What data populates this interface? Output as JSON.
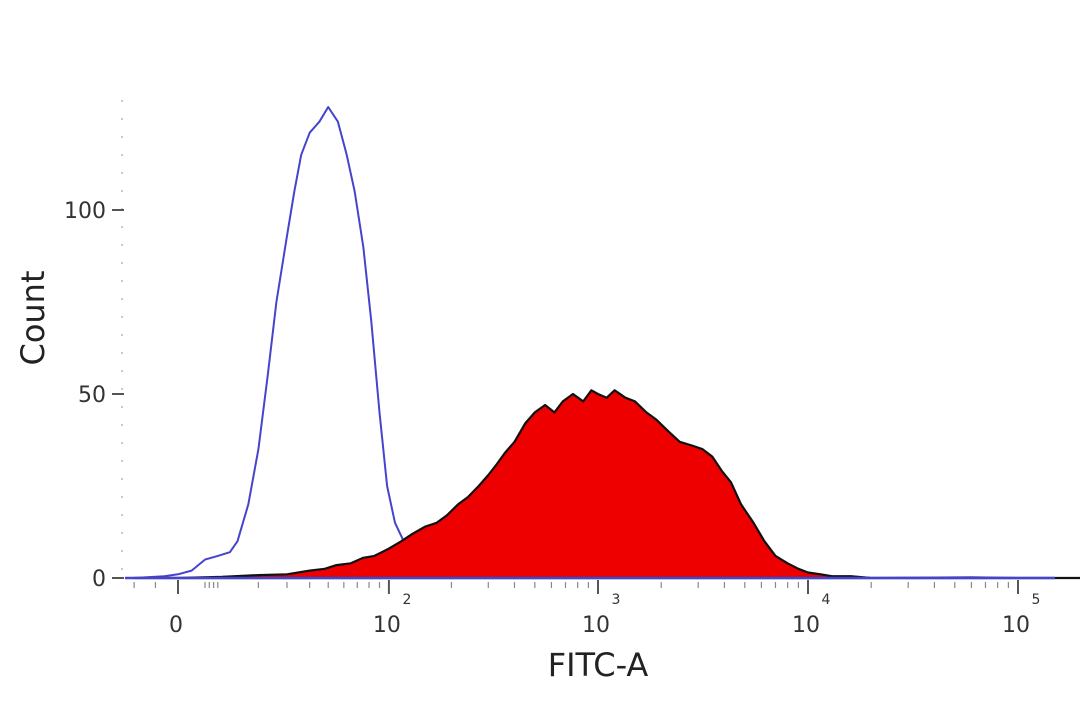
{
  "chart_data": {
    "type": "area",
    "xlabel": "FITC-A",
    "ylabel": "Count",
    "x_scale": "biexponential",
    "x_ticks": [
      {
        "value": 0,
        "base": "0",
        "exp": ""
      },
      {
        "value": 100,
        "base": "10",
        "exp": "2"
      },
      {
        "value": 1000,
        "base": "10",
        "exp": "3"
      },
      {
        "value": 10000,
        "base": "10",
        "exp": "4"
      },
      {
        "value": 100000,
        "base": "10",
        "exp": "5"
      }
    ],
    "y_ticks": [
      {
        "value": 0,
        "label": "0"
      },
      {
        "value": 50,
        "label": "50"
      },
      {
        "value": 100,
        "label": "100"
      }
    ],
    "xlim": [
      -15,
      260000
    ],
    "ylim": [
      0,
      130
    ],
    "series": [
      {
        "style": "outline",
        "color": "#4444cc",
        "points": [
          [
            -10,
            0
          ],
          [
            -3,
            0.5
          ],
          [
            0,
            1
          ],
          [
            3,
            2
          ],
          [
            6,
            5
          ],
          [
            9,
            6
          ],
          [
            12,
            7
          ],
          [
            14,
            10
          ],
          [
            17,
            20
          ],
          [
            20,
            35
          ],
          [
            23,
            55
          ],
          [
            26,
            75
          ],
          [
            30,
            93
          ],
          [
            33,
            105
          ],
          [
            36,
            115
          ],
          [
            40,
            121
          ],
          [
            45,
            124
          ],
          [
            50,
            128
          ],
          [
            56,
            124
          ],
          [
            62,
            115
          ],
          [
            68,
            105
          ],
          [
            75,
            90
          ],
          [
            82,
            70
          ],
          [
            90,
            45
          ],
          [
            98,
            25
          ],
          [
            107,
            15
          ],
          [
            118,
            10
          ],
          [
            132,
            7
          ],
          [
            150,
            4
          ],
          [
            175,
            2
          ],
          [
            200,
            2
          ],
          [
            240,
            1.5
          ],
          [
            300,
            1
          ],
          [
            400,
            0.5
          ],
          [
            600,
            0.3
          ],
          [
            1000,
            0.2
          ],
          [
            3000,
            0.1
          ],
          [
            10000,
            0
          ],
          [
            16000,
            0.3
          ],
          [
            20000,
            0
          ],
          [
            60000,
            0.2
          ],
          [
            100000,
            0
          ],
          [
            250000,
            0
          ]
        ]
      },
      {
        "style": "filled",
        "color": "#ee0000",
        "outline": "#111111",
        "points": [
          [
            -10,
            0
          ],
          [
            0,
            0
          ],
          [
            10,
            0.3
          ],
          [
            20,
            0.8
          ],
          [
            30,
            1
          ],
          [
            40,
            2
          ],
          [
            48,
            2.5
          ],
          [
            55,
            3.5
          ],
          [
            65,
            4
          ],
          [
            75,
            5.5
          ],
          [
            85,
            6
          ],
          [
            100,
            8
          ],
          [
            115,
            10
          ],
          [
            130,
            12
          ],
          [
            150,
            14
          ],
          [
            170,
            15
          ],
          [
            190,
            17
          ],
          [
            215,
            20
          ],
          [
            240,
            22
          ],
          [
            270,
            25
          ],
          [
            300,
            28
          ],
          [
            330,
            31
          ],
          [
            360,
            34
          ],
          [
            400,
            37
          ],
          [
            450,
            42
          ],
          [
            500,
            45
          ],
          [
            560,
            47
          ],
          [
            620,
            45
          ],
          [
            680,
            48
          ],
          [
            760,
            50
          ],
          [
            850,
            48
          ],
          [
            930,
            51
          ],
          [
            1000,
            50
          ],
          [
            1100,
            49
          ],
          [
            1200,
            51
          ],
          [
            1350,
            49
          ],
          [
            1500,
            48
          ],
          [
            1700,
            45
          ],
          [
            1900,
            43
          ],
          [
            2150,
            40
          ],
          [
            2450,
            37
          ],
          [
            2800,
            36
          ],
          [
            3150,
            35
          ],
          [
            3500,
            33
          ],
          [
            3900,
            29
          ],
          [
            4300,
            26
          ],
          [
            4800,
            20
          ],
          [
            5500,
            15
          ],
          [
            6200,
            10
          ],
          [
            7000,
            6
          ],
          [
            8000,
            4
          ],
          [
            9000,
            2.5
          ],
          [
            10000,
            1.5
          ],
          [
            11500,
            1
          ],
          [
            13000,
            0.5
          ],
          [
            16000,
            0.5
          ],
          [
            20000,
            0
          ],
          [
            250000,
            0
          ]
        ]
      }
    ]
  }
}
